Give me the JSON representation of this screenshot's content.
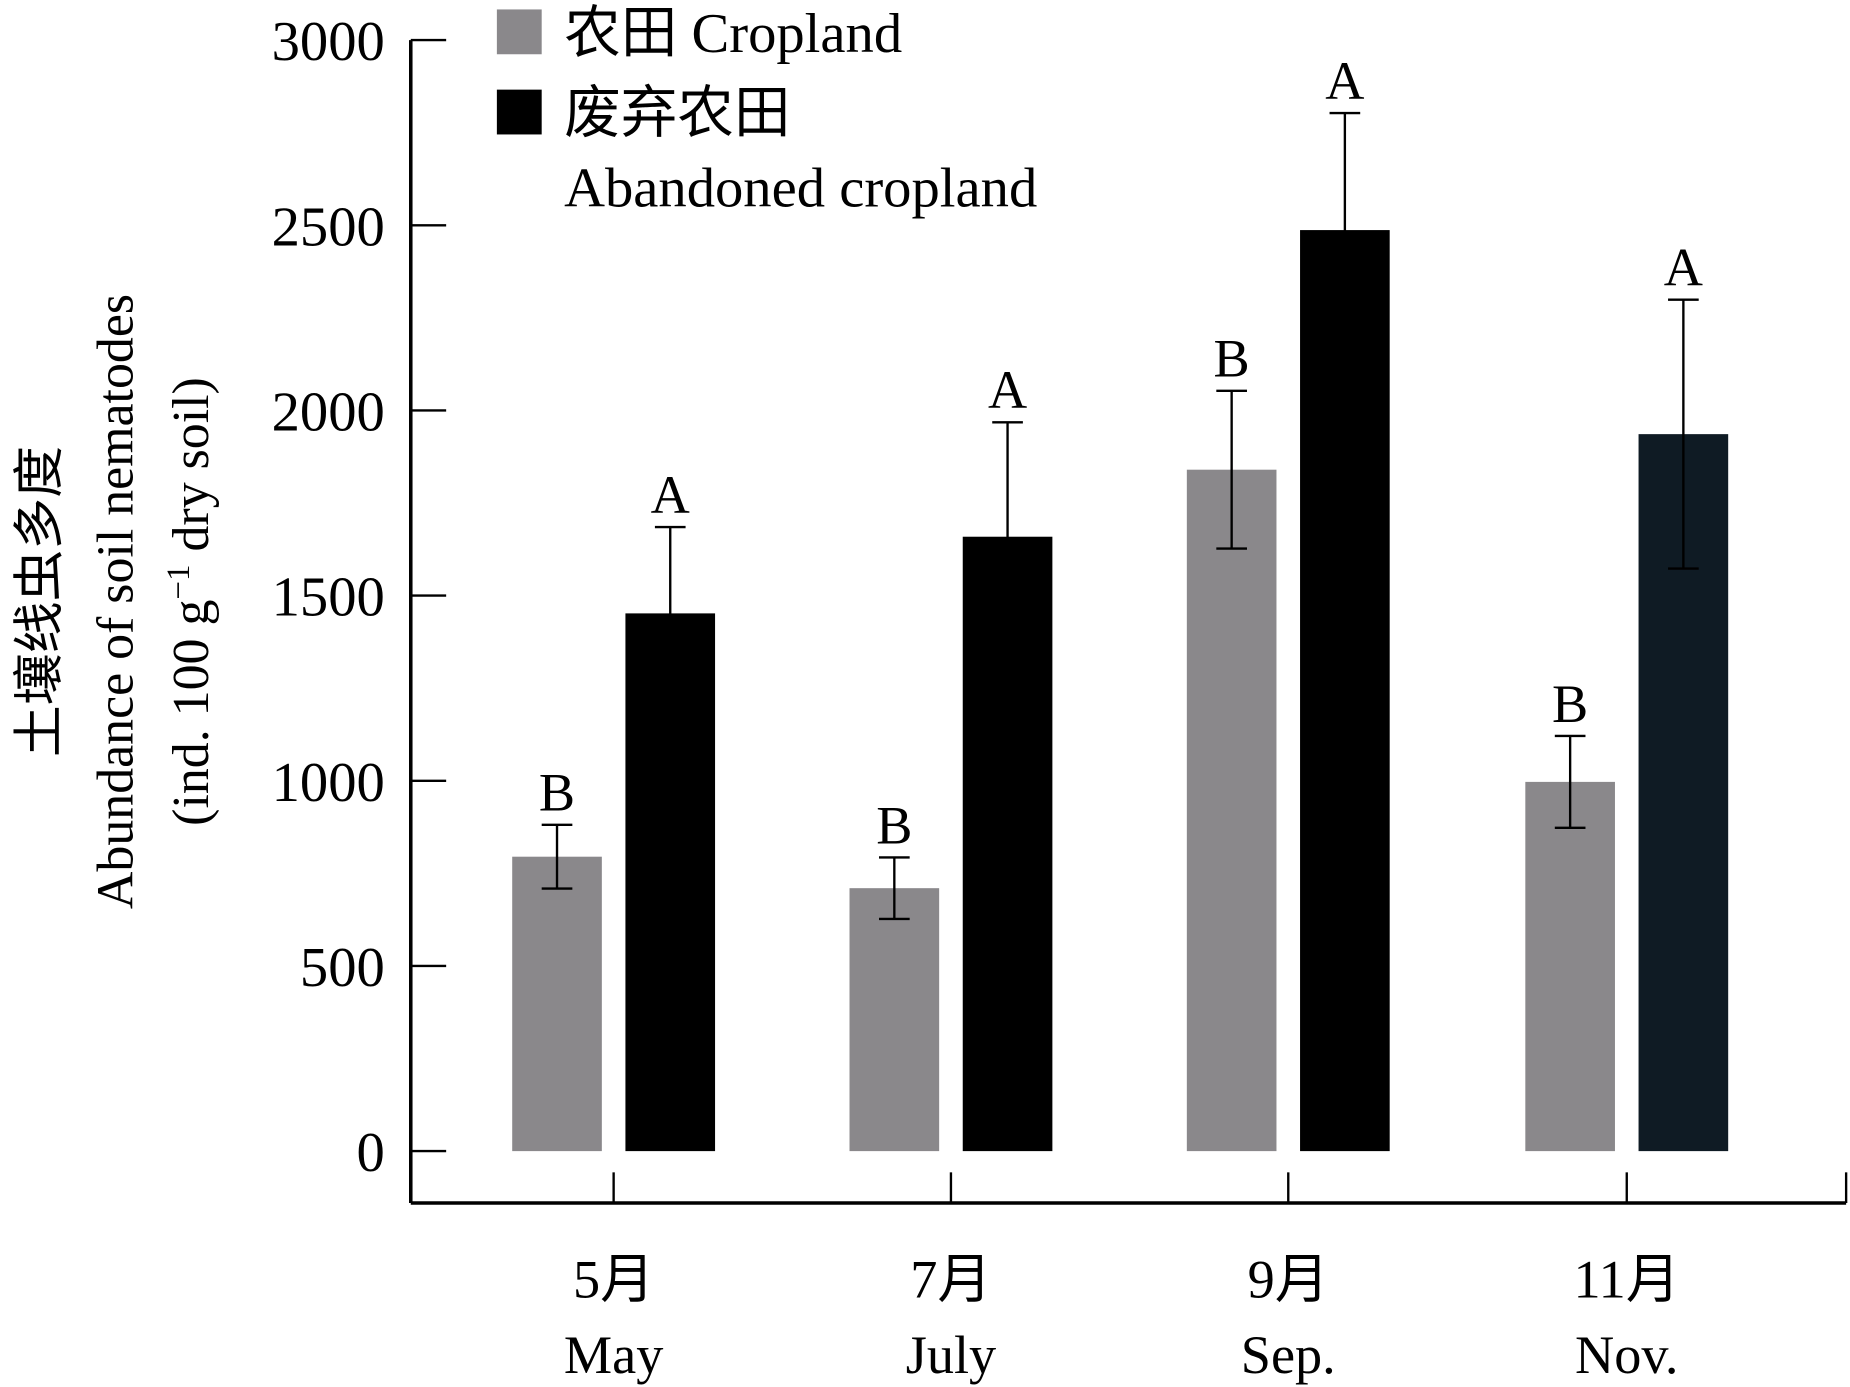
{
  "chart_data": {
    "type": "bar",
    "title": "",
    "ylabel_lines": [
      "土壤线虫多度",
      "Abundance of soil nematodes",
      "(ind. 100 g",
      "−1",
      " dry soil)"
    ],
    "xlabel": "",
    "ylim": [
      0,
      3000
    ],
    "yticks": [
      "0",
      "500",
      "1000",
      "1500",
      "2000",
      "2500",
      "3000"
    ],
    "categories": [
      {
        "cn": "5月",
        "en": "May"
      },
      {
        "cn": "7月",
        "en": "July"
      },
      {
        "cn": "9月",
        "en": "Sep."
      },
      {
        "cn": "11月",
        "en": "Nov."
      }
    ],
    "series": [
      {
        "name": "农田 Cropland",
        "color": "#8a888b",
        "values": [
          795,
          710,
          1840,
          997
        ],
        "errors": [
          86,
          83,
          213,
          124
        ],
        "letters": [
          "B",
          "B",
          "B",
          "B"
        ]
      },
      {
        "name": "废弃农田 Abandoned cropland",
        "name_lines": [
          "废弃农田",
          "Abandoned cropland"
        ],
        "color": "#000000",
        "colors": [
          "#000000",
          "#000000",
          "#000000",
          "#0f1b24"
        ],
        "values": [
          1452,
          1659,
          2487,
          1936
        ],
        "errors": [
          233,
          309,
          316,
          363
        ],
        "letters": [
          "A",
          "A",
          "A",
          "A"
        ]
      }
    ],
    "legend": "top-left",
    "grid": false
  }
}
